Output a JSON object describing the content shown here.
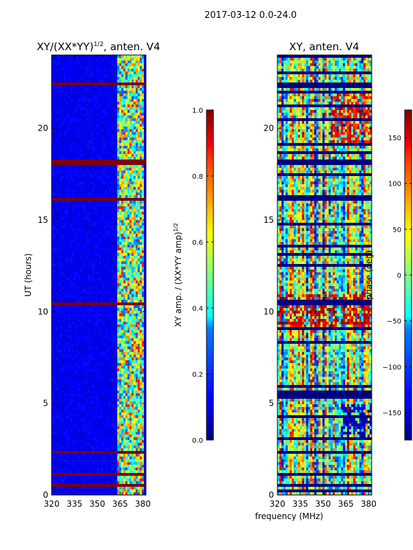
{
  "figure_title": "2017-03-12 0.0-24.0",
  "chart_data": [
    {
      "type": "heatmap",
      "title_main": "XY/(XX*YY)",
      "title_sup": "1/2",
      "title_rest": ", anten. V4",
      "xlabel": "",
      "ylabel": "UT (hours)",
      "xlim": [
        320,
        382
      ],
      "ylim": [
        0,
        24
      ],
      "xticks": [
        "320",
        "335",
        "350",
        "365",
        "380"
      ],
      "yticks": [
        "0",
        "5",
        "10",
        "15",
        "20"
      ],
      "colorscale": "jet",
      "colorbar": {
        "range": [
          0.0,
          1.0
        ],
        "ticks": [
          "0.0",
          "0.2",
          "0.4",
          "0.6",
          "0.8",
          "1.0"
        ],
        "label_main": "XY amp. / (XX*YY amp)",
        "label_sup": "1/2"
      },
      "flagged_bands_hours": [
        [
          0.1,
          0.2
        ],
        [
          0.5,
          0.6
        ],
        [
          1.0,
          1.2
        ],
        [
          2.2,
          2.4
        ],
        [
          10.3,
          10.5
        ],
        [
          16.0,
          16.2
        ],
        [
          18.0,
          18.3
        ],
        [
          22.4,
          22.5
        ]
      ],
      "high_amplitude_freq_range_mhz": [
        363,
        380
      ]
    },
    {
      "type": "heatmap",
      "title": "XY, anten. V4",
      "xlabel": "frequency (MHz)",
      "ylabel": "",
      "xlim": [
        320,
        382
      ],
      "ylim": [
        0,
        24
      ],
      "xticks": [
        "320",
        "335",
        "350",
        "365",
        "380"
      ],
      "yticks": [
        "0",
        "5",
        "10",
        "15",
        "20"
      ],
      "colorscale": "jet",
      "colorbar": {
        "range": [
          -180,
          180
        ],
        "ticks": [
          "−150",
          "−100",
          "−50",
          "0",
          "50",
          "100",
          "150"
        ],
        "label": "phase (deg)"
      }
    }
  ]
}
